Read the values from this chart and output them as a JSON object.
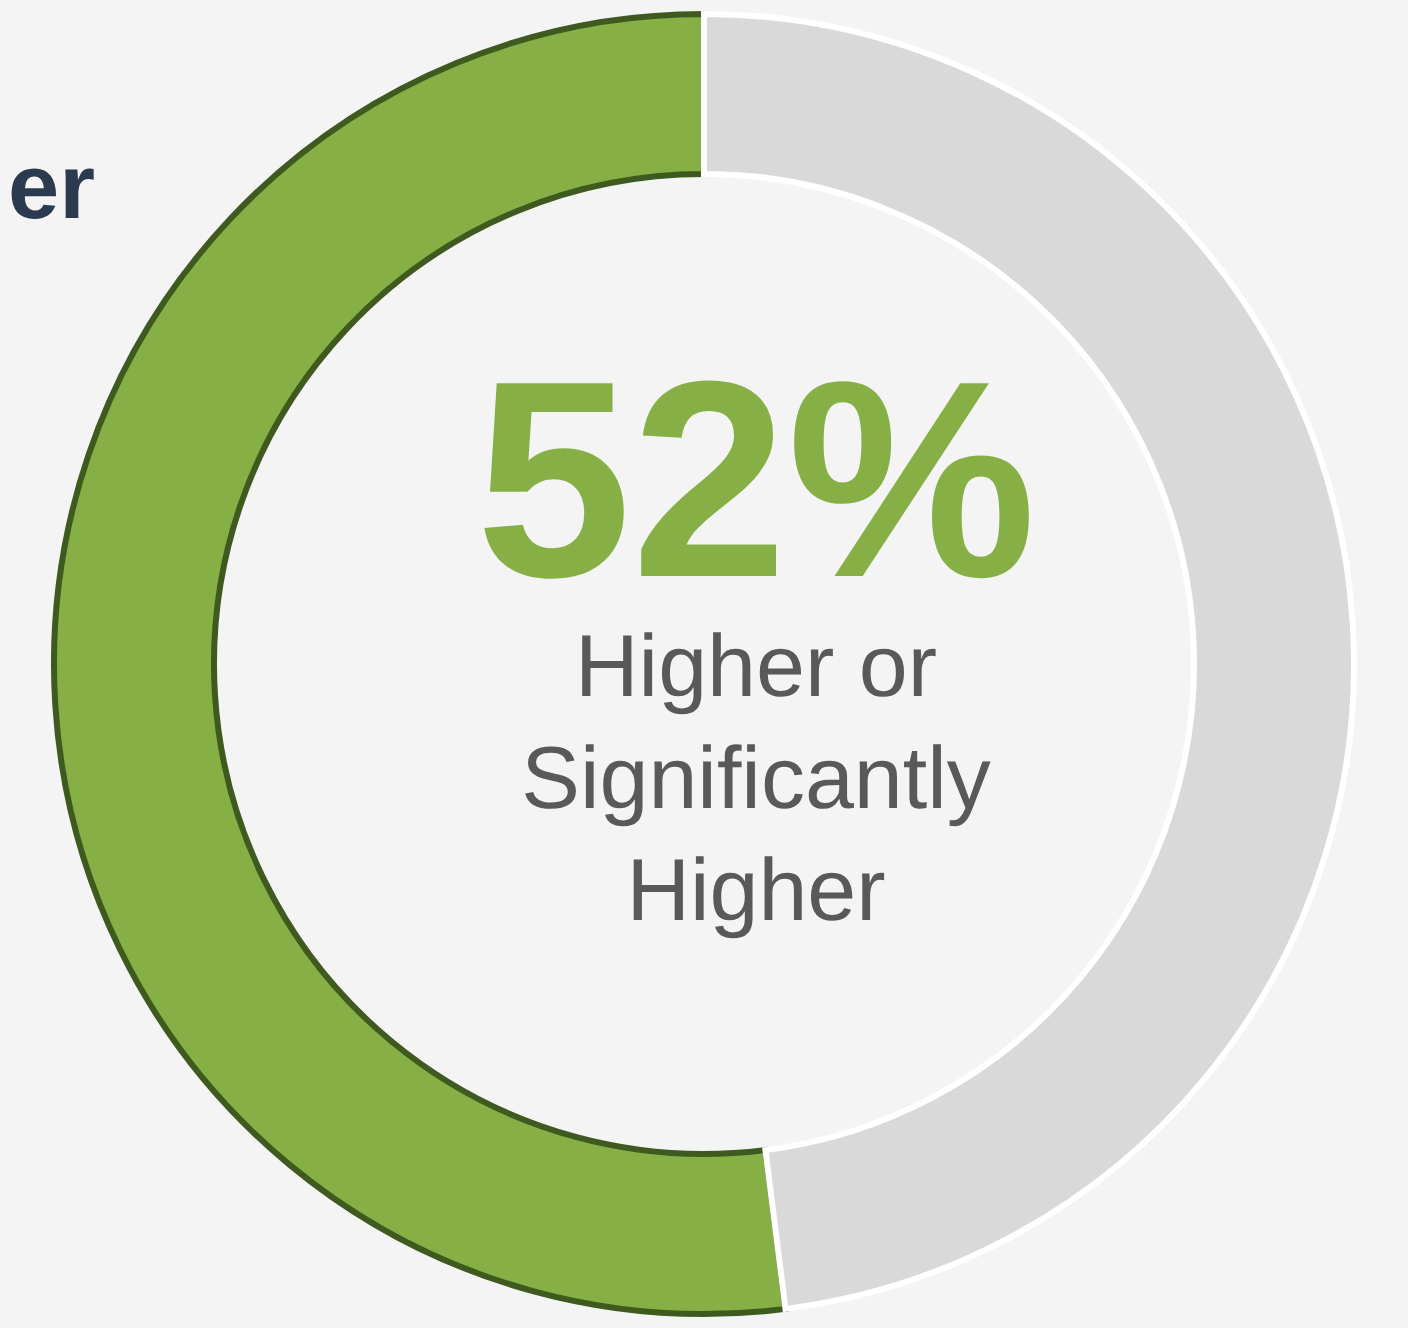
{
  "chart_data": {
    "type": "donut",
    "categories": [
      "Higher or Significantly Higher",
      null
    ],
    "values": [
      52,
      48
    ],
    "colors": [
      "#86b045",
      "#d9d9d9"
    ],
    "value_labels": [
      "52%",
      null
    ],
    "annotations": [
      "er"
    ]
  }
}
